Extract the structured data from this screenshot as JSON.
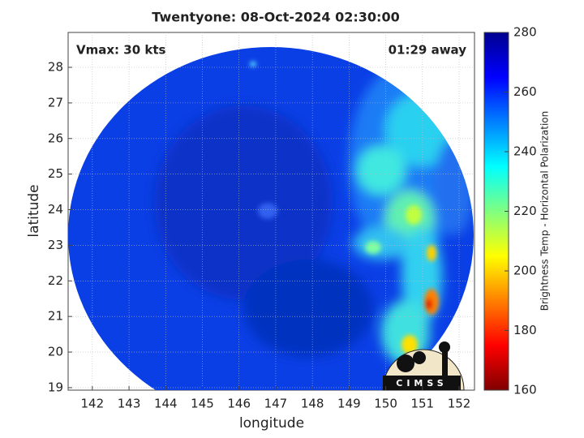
{
  "chart_data": {
    "type": "image-map",
    "title": "Twentyone: 08-Oct-2024 02:30:00",
    "xlabel": "longitude",
    "ylabel": "latitude",
    "xlim": [
      141.34,
      152.42
    ],
    "xticks": [
      142,
      143,
      144,
      145,
      146,
      147,
      148,
      149,
      150,
      151,
      152
    ],
    "ylim": [
      18.93,
      28.98
    ],
    "yticks": [
      19,
      20,
      21,
      22,
      23,
      24,
      25,
      26,
      27,
      28
    ],
    "grid": true,
    "annotations": [
      "Vmax: 30 kts",
      "01:29 away"
    ],
    "colorbar": {
      "label": "Brightness Temp - Horizontal Polarization",
      "clim": [
        160,
        280
      ],
      "ticks": [
        160,
        180,
        200,
        220,
        240,
        260,
        280
      ],
      "colormap": [
        "#800000",
        "#ff0000",
        "#ff8000",
        "#ffff00",
        "#80ff80",
        "#00ffff",
        "#0080ff",
        "#0000ff",
        "#000090"
      ]
    },
    "logo": "CIMSS"
  }
}
